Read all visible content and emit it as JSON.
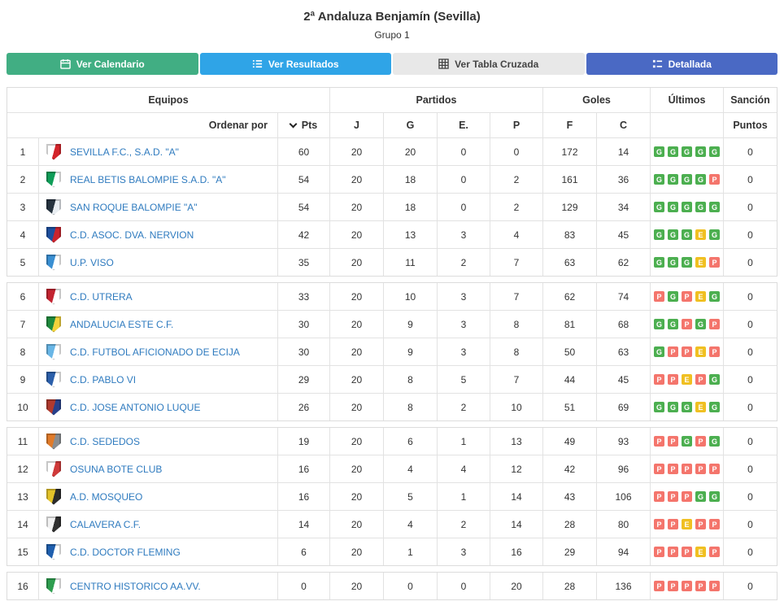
{
  "header": {
    "title": "2ª Andaluza Benjamín (Sevilla)",
    "subtitle": "Grupo 1"
  },
  "tabs": [
    {
      "label": "Ver Calendario",
      "icon": "calendar-icon",
      "color": "#41ae83",
      "text_color": "#ffffff"
    },
    {
      "label": "Ver Resultados",
      "icon": "list-icon",
      "color": "#2fa4e7",
      "text_color": "#ffffff"
    },
    {
      "label": "Ver Tabla Cruzada",
      "icon": "table-icon",
      "color": "#e8e8e8",
      "text_color": "#444444"
    },
    {
      "label": "Detallada",
      "icon": "detail-icon",
      "color": "#4a69c4",
      "text_color": "#ffffff"
    }
  ],
  "badge_colors": {
    "G": "#4caf50",
    "E": "#f0c022",
    "P": "#f4756c"
  },
  "table": {
    "group_headers": {
      "equipos": "Equipos",
      "partidos": "Partidos",
      "goles": "Goles",
      "ultimos": "Últimos",
      "sancion": "Sanción"
    },
    "sub_headers": {
      "ordenar": "Ordenar por",
      "pts": "Pts",
      "j": "J",
      "g": "G",
      "e": "E.",
      "p": "P",
      "f": "F",
      "c": "C",
      "puntos": "Puntos"
    },
    "group_sizes": [
      5,
      5,
      5,
      1
    ],
    "rows": [
      {
        "pos": 1,
        "team": "SEVILLA F.C., S.A.D. \"A\"",
        "pts": 60,
        "j": 20,
        "g": 20,
        "e": 0,
        "p": 0,
        "f": 172,
        "c": 14,
        "last5": [
          "G",
          "G",
          "G",
          "G",
          "G"
        ],
        "sancion": 0,
        "crest": [
          "#ffffff",
          "#d3242b"
        ]
      },
      {
        "pos": 2,
        "team": "REAL BETIS BALOMPIE S.A.D. \"A\"",
        "pts": 54,
        "j": 20,
        "g": 18,
        "e": 0,
        "p": 2,
        "f": 161,
        "c": 36,
        "last5": [
          "G",
          "G",
          "G",
          "G",
          "P"
        ],
        "sancion": 0,
        "crest": [
          "#0f9d58",
          "#ffffff"
        ]
      },
      {
        "pos": 3,
        "team": "SAN ROQUE BALOMPIE \"A\"",
        "pts": 54,
        "j": 20,
        "g": 18,
        "e": 0,
        "p": 2,
        "f": 129,
        "c": 34,
        "last5": [
          "G",
          "G",
          "G",
          "G",
          "G"
        ],
        "sancion": 0,
        "crest": [
          "#26333f",
          "#e9eef2"
        ]
      },
      {
        "pos": 4,
        "team": "C.D. ASOC. DVA. NERVION",
        "pts": 42,
        "j": 20,
        "g": 13,
        "e": 3,
        "p": 4,
        "f": 83,
        "c": 45,
        "last5": [
          "G",
          "G",
          "G",
          "E",
          "G"
        ],
        "sancion": 0,
        "crest": [
          "#1d4f9e",
          "#c8242e"
        ]
      },
      {
        "pos": 5,
        "team": "U.P. VISO",
        "pts": 35,
        "j": 20,
        "g": 11,
        "e": 2,
        "p": 7,
        "f": 63,
        "c": 62,
        "last5": [
          "G",
          "G",
          "G",
          "E",
          "P"
        ],
        "sancion": 0,
        "crest": [
          "#3a8fd2",
          "#ffffff"
        ]
      },
      {
        "pos": 6,
        "team": "C.D. UTRERA",
        "pts": 33,
        "j": 20,
        "g": 10,
        "e": 3,
        "p": 7,
        "f": 62,
        "c": 74,
        "last5": [
          "P",
          "G",
          "P",
          "E",
          "G"
        ],
        "sancion": 0,
        "crest": [
          "#c32330",
          "#ffffff"
        ]
      },
      {
        "pos": 7,
        "team": "ANDALUCIA ESTE C.F.",
        "pts": 30,
        "j": 20,
        "g": 9,
        "e": 3,
        "p": 8,
        "f": 81,
        "c": 68,
        "last5": [
          "G",
          "G",
          "P",
          "G",
          "P"
        ],
        "sancion": 0,
        "crest": [
          "#1f8a3d",
          "#f2d23c"
        ]
      },
      {
        "pos": 8,
        "team": "C.D. FUTBOL AFICIONADO DE ECIJA",
        "pts": 30,
        "j": 20,
        "g": 9,
        "e": 3,
        "p": 8,
        "f": 50,
        "c": 63,
        "last5": [
          "G",
          "P",
          "P",
          "E",
          "P"
        ],
        "sancion": 0,
        "crest": [
          "#69b6e6",
          "#ffffff"
        ]
      },
      {
        "pos": 9,
        "team": "C.D. PABLO VI",
        "pts": 29,
        "j": 20,
        "g": 8,
        "e": 5,
        "p": 7,
        "f": 44,
        "c": 45,
        "last5": [
          "P",
          "P",
          "E",
          "P",
          "G"
        ],
        "sancion": 0,
        "crest": [
          "#2b5faa",
          "#ffffff"
        ]
      },
      {
        "pos": 10,
        "team": "C.D. JOSE ANTONIO LUQUE",
        "pts": 26,
        "j": 20,
        "g": 8,
        "e": 2,
        "p": 10,
        "f": 51,
        "c": 69,
        "last5": [
          "G",
          "G",
          "G",
          "E",
          "G"
        ],
        "sancion": 0,
        "crest": [
          "#b03a2e",
          "#27408b"
        ]
      },
      {
        "pos": 11,
        "team": "C.D. SEDEDOS",
        "pts": 19,
        "j": 20,
        "g": 6,
        "e": 1,
        "p": 13,
        "f": 49,
        "c": 93,
        "last5": [
          "P",
          "P",
          "G",
          "P",
          "G"
        ],
        "sancion": 0,
        "crest": [
          "#e07b2a",
          "#8a8d90"
        ]
      },
      {
        "pos": 12,
        "team": "OSUNA BOTE CLUB",
        "pts": 16,
        "j": 20,
        "g": 4,
        "e": 4,
        "p": 12,
        "f": 42,
        "c": 96,
        "last5": [
          "P",
          "P",
          "P",
          "P",
          "P"
        ],
        "sancion": 0,
        "crest": [
          "#ffffff",
          "#cf3a3a"
        ]
      },
      {
        "pos": 13,
        "team": "A.D. MOSQUEO",
        "pts": 16,
        "j": 20,
        "g": 5,
        "e": 1,
        "p": 14,
        "f": 43,
        "c": 106,
        "last5": [
          "P",
          "P",
          "P",
          "G",
          "G"
        ],
        "sancion": 0,
        "crest": [
          "#e3c229",
          "#2b2b2b"
        ]
      },
      {
        "pos": 14,
        "team": "CALAVERA C.F.",
        "pts": 14,
        "j": 20,
        "g": 4,
        "e": 2,
        "p": 14,
        "f": 28,
        "c": 80,
        "last5": [
          "P",
          "P",
          "E",
          "P",
          "P"
        ],
        "sancion": 0,
        "crest": [
          "#f2f2f2",
          "#2f2f2f"
        ]
      },
      {
        "pos": 15,
        "team": "C.D. DOCTOR FLEMING",
        "pts": 6,
        "j": 20,
        "g": 1,
        "e": 3,
        "p": 16,
        "f": 29,
        "c": 94,
        "last5": [
          "P",
          "P",
          "P",
          "E",
          "P"
        ],
        "sancion": 0,
        "crest": [
          "#1f5fae",
          "#ffffff"
        ]
      },
      {
        "pos": 16,
        "team": "CENTRO HISTORICO AA.VV.",
        "pts": 0,
        "j": 20,
        "g": 0,
        "e": 0,
        "p": 20,
        "f": 28,
        "c": 136,
        "last5": [
          "P",
          "P",
          "P",
          "P",
          "P"
        ],
        "sancion": 0,
        "crest": [
          "#2e9e4f",
          "#ffffff"
        ]
      }
    ]
  }
}
